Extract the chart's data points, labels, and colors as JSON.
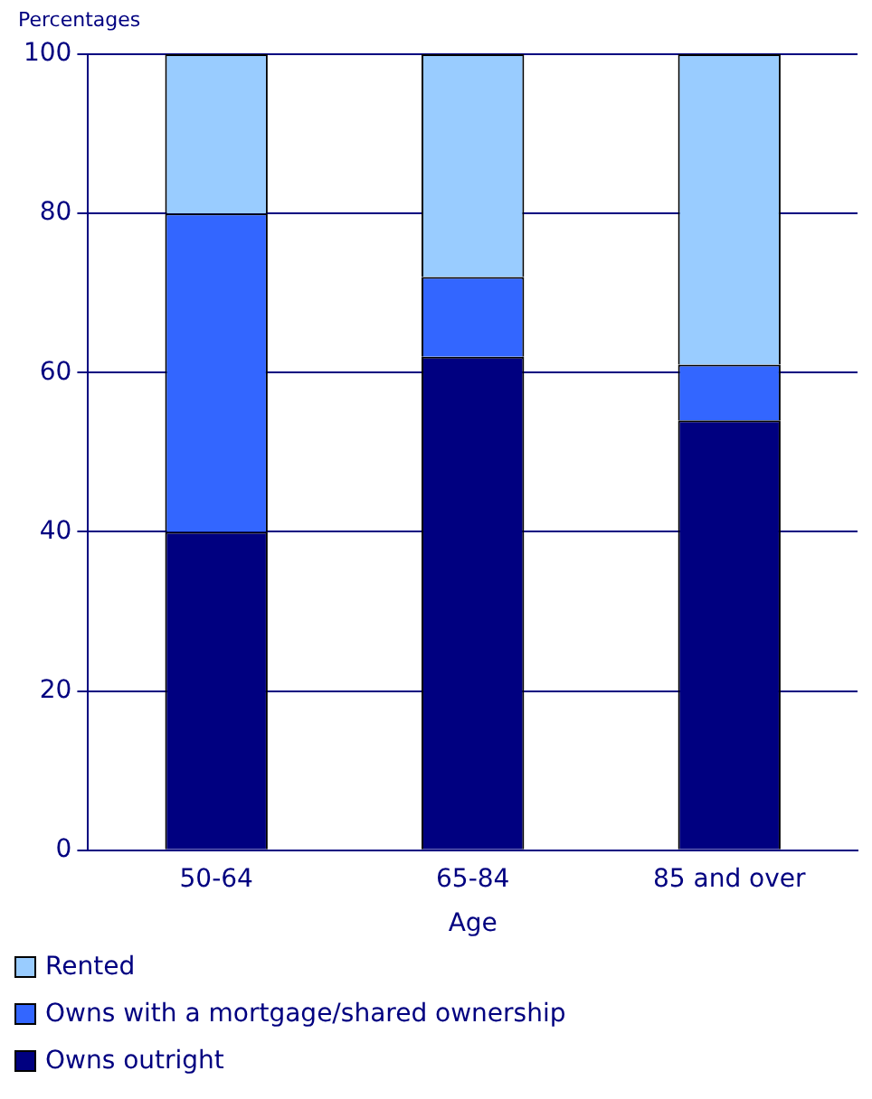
{
  "chart_data": {
    "type": "bar",
    "stacked": true,
    "ylabel": "Percentages",
    "xlabel": "Age",
    "categories": [
      "50-64",
      "65-84",
      "85 and over"
    ],
    "series": [
      {
        "name": "Owns outright",
        "color": "#000080",
        "values": [
          40,
          62,
          54
        ]
      },
      {
        "name": "Owns with a mortgage/shared ownership",
        "color": "#3366ff",
        "values": [
          40,
          10,
          7
        ]
      },
      {
        "name": "Rented",
        "color": "#99ccff",
        "values": [
          20,
          28,
          39
        ]
      }
    ],
    "ylim": [
      0,
      100
    ],
    "yticks": [
      0,
      20,
      40,
      60,
      80,
      100
    ],
    "grid": "y",
    "legend": "bottom"
  }
}
